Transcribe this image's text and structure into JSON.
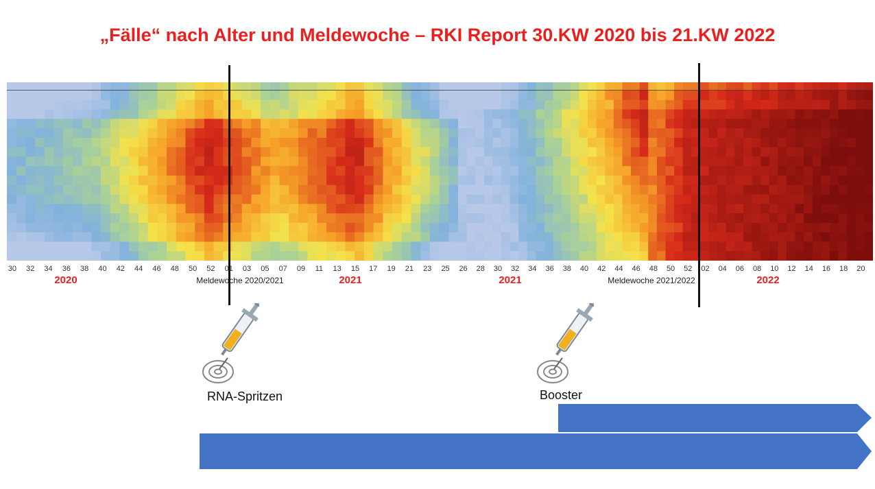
{
  "title": "„Fälle“ nach Alter und Meldewoche – RKI Report 30.KW 2020 bis 21.KW 2022",
  "chart_data": {
    "type": "heatmap",
    "panels": [
      {
        "name": "panel-2020-2021",
        "x_ticks": [
          "30",
          "32",
          "34",
          "36",
          "38",
          "40",
          "42",
          "44",
          "46",
          "48",
          "50",
          "52",
          "01",
          "03",
          "05",
          "07",
          "09",
          "11",
          "13",
          "15",
          "17",
          "19",
          "21",
          "23",
          "25"
        ],
        "xlabel": "Meldewoche 2020/2021",
        "year_labels": [
          "2020",
          "2021"
        ],
        "rows": 18,
        "cols": 48
      },
      {
        "name": "panel-2021-2022",
        "x_ticks": [
          "26",
          "28",
          "30",
          "32",
          "34",
          "36",
          "38",
          "40",
          "42",
          "44",
          "46",
          "48",
          "50",
          "52",
          "02",
          "04",
          "06",
          "08",
          "10",
          "12",
          "14",
          "16",
          "18",
          "20"
        ],
        "xlabel": "Meldewoche 2021/2022",
        "year_labels": [
          "2021",
          "2022"
        ],
        "rows": 18,
        "cols": 48
      }
    ],
    "colors": {
      "low": "#b8c8e8",
      "mid": "#f5e24a",
      "high": "#d42a1a",
      "max": "#7e0e0c",
      "year_label": "#e8211f"
    }
  },
  "annotations": {
    "rna_label": "RNA-Spritzen",
    "booster_label": "Booster"
  },
  "arrow_color": "#4472c4"
}
